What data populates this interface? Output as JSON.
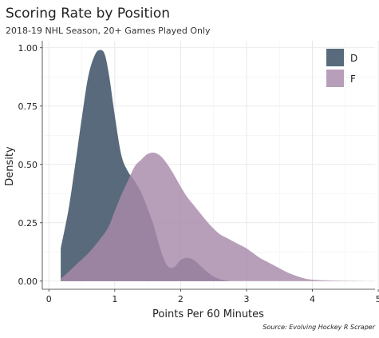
{
  "chart_data": {
    "type": "area",
    "title": "Scoring Rate by Position",
    "subtitle": "2018-19 NHL Season, 20+ Games Played Only",
    "xlabel": "Points Per 60 Minutes",
    "ylabel": "Density",
    "caption": "Source: Evolving Hockey R Scraper",
    "xlim": [
      -0.1,
      4.95
    ],
    "ylim": [
      -0.035,
      1.03
    ],
    "x_ticks": [
      0,
      1,
      2,
      3,
      4,
      5
    ],
    "x_tick_labels": [
      "0",
      "1",
      "2",
      "3",
      "4",
      "5"
    ],
    "y_ticks": [
      0,
      0.25,
      0.5,
      0.75,
      1.0
    ],
    "y_tick_labels": [
      "0.00",
      "0.25",
      "0.50",
      "0.75",
      "1.00"
    ],
    "grid": true,
    "legend_position": "top-right",
    "series": [
      {
        "name": "D",
        "color": "#4a5d70",
        "opacity": 0.92,
        "x": [
          0.18,
          0.3,
          0.4,
          0.5,
          0.6,
          0.7,
          0.78,
          0.85,
          0.92,
          1.0,
          1.1,
          1.2,
          1.3,
          1.4,
          1.5,
          1.6,
          1.7,
          1.8,
          1.9,
          2.0,
          2.1,
          2.2,
          2.3,
          2.4,
          2.5,
          2.6,
          2.7,
          2.75
        ],
        "values": [
          0.14,
          0.31,
          0.5,
          0.7,
          0.88,
          0.97,
          0.99,
          0.97,
          0.87,
          0.71,
          0.54,
          0.47,
          0.43,
          0.38,
          0.31,
          0.23,
          0.13,
          0.065,
          0.06,
          0.09,
          0.1,
          0.09,
          0.065,
          0.04,
          0.02,
          0.008,
          0.002,
          0.0
        ]
      },
      {
        "name": "F",
        "color": "#a88aaa",
        "opacity": 0.82,
        "x": [
          0.18,
          0.3,
          0.45,
          0.6,
          0.75,
          0.9,
          1.0,
          1.1,
          1.2,
          1.3,
          1.4,
          1.5,
          1.6,
          1.7,
          1.8,
          1.9,
          2.0,
          2.1,
          2.2,
          2.3,
          2.4,
          2.5,
          2.6,
          2.7,
          2.8,
          2.9,
          3.0,
          3.1,
          3.2,
          3.3,
          3.4,
          3.5,
          3.6,
          3.7,
          3.8,
          3.9,
          4.0,
          4.2,
          4.4,
          4.6,
          4.85
        ],
        "values": [
          0.01,
          0.04,
          0.08,
          0.12,
          0.17,
          0.23,
          0.3,
          0.37,
          0.43,
          0.49,
          0.52,
          0.545,
          0.55,
          0.535,
          0.5,
          0.455,
          0.405,
          0.36,
          0.325,
          0.29,
          0.255,
          0.225,
          0.2,
          0.185,
          0.17,
          0.155,
          0.14,
          0.12,
          0.1,
          0.085,
          0.07,
          0.055,
          0.04,
          0.028,
          0.018,
          0.01,
          0.006,
          0.003,
          0.002,
          0.001,
          0.0
        ]
      }
    ]
  }
}
